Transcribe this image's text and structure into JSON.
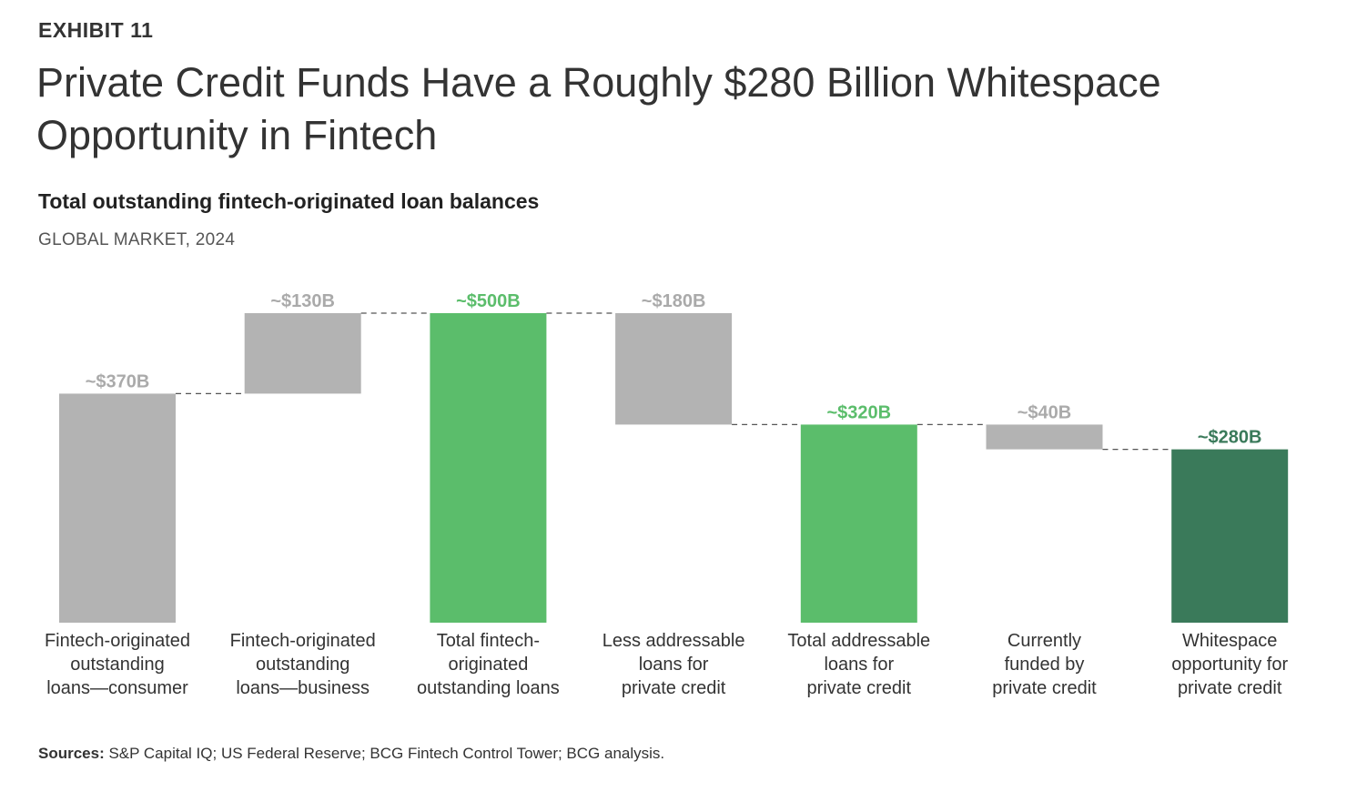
{
  "header": {
    "exhibit": "EXHIBIT 11",
    "title": "Private Credit Funds Have a Roughly $280 Billion Whitespace Opportunity in Fintech",
    "subtitle": "Total outstanding fintech-originated loan balances",
    "market": "GLOBAL MARKET, 2024"
  },
  "colors": {
    "accent": "#5bbd6b",
    "gray": "#b3b3b3",
    "dark_green": "#3a7a5a",
    "exhibit_label": "#5bbd6b"
  },
  "chart_data": {
    "type": "bar",
    "subtype": "waterfall",
    "title": "Total outstanding fintech-originated loan balances",
    "subtitle": "GLOBAL MARKET, 2024",
    "xlabel": "",
    "ylabel": "",
    "ylim": [
      0,
      500
    ],
    "grid": false,
    "unit": "$B",
    "categories": [
      "Fintech-originated outstanding loans—consumer",
      "Fintech-originated outstanding loans—business",
      "Total fintech-originated outstanding loans",
      "Less addressable loans for private credit",
      "Total addressable loans for private credit",
      "Currently funded by private credit",
      "Whitespace opportunity for private credit"
    ],
    "bars": [
      {
        "bottom": 0,
        "top": 370,
        "label": "~$370B",
        "kind": "gray"
      },
      {
        "bottom": 370,
        "top": 500,
        "label": "~$130B",
        "kind": "gray"
      },
      {
        "bottom": 0,
        "top": 500,
        "label": "~$500B",
        "kind": "accent"
      },
      {
        "bottom": 320,
        "top": 500,
        "label": "~$180B",
        "kind": "gray"
      },
      {
        "bottom": 0,
        "top": 320,
        "label": "~$320B",
        "kind": "accent"
      },
      {
        "bottom": 280,
        "top": 320,
        "label": "~$40B",
        "kind": "gray"
      },
      {
        "bottom": 0,
        "top": 280,
        "label": "~$280B",
        "kind": "dark_green"
      }
    ],
    "labels": {
      "cat0": [
        "Fintech-originated",
        "outstanding",
        "loans—consumer"
      ],
      "cat1": [
        "Fintech-originated",
        "outstanding",
        "loans—business"
      ],
      "cat2": [
        "Total fintech-",
        "originated",
        "outstanding loans"
      ],
      "cat3": [
        "Less addressable",
        "loans for",
        "private credit"
      ],
      "cat4": [
        "Total addressable",
        "loans for",
        "private credit"
      ],
      "cat5": [
        "Currently",
        "funded by",
        "private credit"
      ],
      "cat6": [
        "Whitespace",
        "opportunity for",
        "private credit"
      ]
    }
  },
  "sources": {
    "label": "Sources:",
    "text": " S&P Capital IQ; US Federal Reserve; BCG Fintech Control Tower; BCG analysis."
  }
}
